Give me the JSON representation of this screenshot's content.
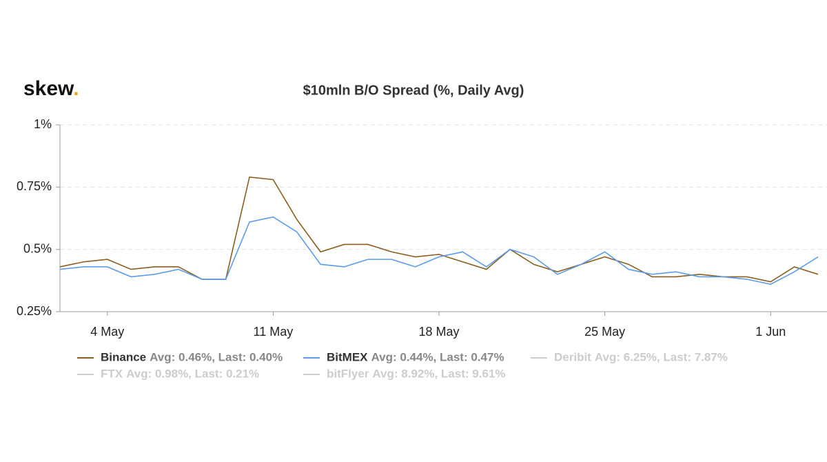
{
  "chart_data": {
    "type": "line",
    "logo": {
      "text": "skew",
      "dot": "."
    },
    "title": "$10mln B/O Spread (%, Daily Avg)",
    "categories": [
      null,
      null,
      "4 May",
      null,
      null,
      null,
      null,
      null,
      null,
      "11 May",
      null,
      null,
      null,
      null,
      null,
      null,
      "18 May",
      null,
      null,
      null,
      null,
      null,
      null,
      "25 May",
      null,
      null,
      null,
      null,
      null,
      null,
      "1 Jun",
      null,
      null
    ],
    "series": [
      {
        "name": "Binance",
        "color": "#8a5d1c",
        "legend_label": "Avg: 0.46%, Last: 0.40%",
        "values": [
          0.43,
          0.45,
          0.46,
          0.42,
          0.43,
          0.43,
          0.38,
          0.38,
          0.79,
          0.78,
          0.62,
          0.49,
          0.52,
          0.52,
          0.49,
          0.47,
          0.48,
          0.45,
          0.42,
          0.5,
          0.44,
          0.41,
          0.44,
          0.47,
          0.44,
          0.39,
          0.39,
          0.4,
          0.39,
          0.39,
          0.37,
          0.43,
          0.4
        ]
      },
      {
        "name": "BitMEX",
        "color": "#5b9bea",
        "legend_label": "Avg: 0.44%, Last: 0.47%",
        "values": [
          0.42,
          0.43,
          0.43,
          0.39,
          0.4,
          0.42,
          0.38,
          0.38,
          0.61,
          0.63,
          0.57,
          0.44,
          0.43,
          0.46,
          0.46,
          0.43,
          0.47,
          0.49,
          0.43,
          0.5,
          0.47,
          0.4,
          0.44,
          0.49,
          0.42,
          0.4,
          0.41,
          0.39,
          0.39,
          0.38,
          0.36,
          0.41,
          0.47
        ]
      }
    ],
    "hidden_series": [
      {
        "name": "Deribit",
        "legend_label": "Avg: 6.25%, Last: 7.87%"
      },
      {
        "name": "FTX",
        "legend_label": "Avg: 0.98%, Last: 0.21%"
      },
      {
        "name": "bitFlyer",
        "legend_label": "Avg: 8.92%, Last: 9.61%"
      }
    ],
    "hidden_color": "#cccccc",
    "ylim": [
      0.25,
      1
    ],
    "yticks": [
      {
        "value": 0.25,
        "label": "0.25%"
      },
      {
        "value": 0.5,
        "label": "0.5%"
      },
      {
        "value": 0.75,
        "label": "0.75%"
      },
      {
        "value": 1,
        "label": "1%"
      }
    ],
    "grid": true
  }
}
